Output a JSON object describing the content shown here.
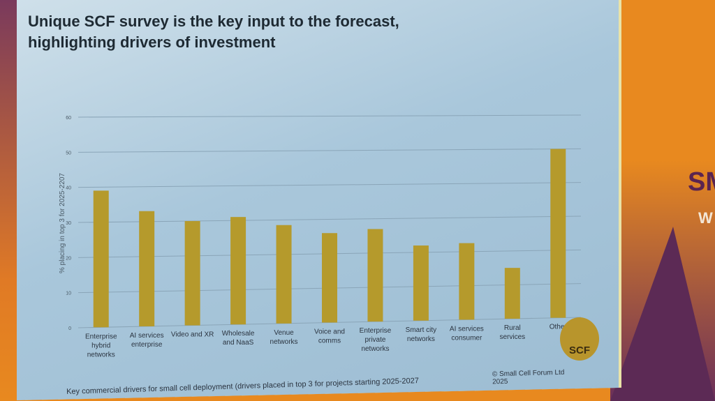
{
  "slide": {
    "title_line1": "Unique SCF survey is the key input to the forecast,",
    "title_line2": "highlighting drivers of investment",
    "footnote": "Key commercial drivers for small cell deployment (drivers placed in top 3 for projects starting 2025-2027",
    "copyright": "© Small Cell Forum Ltd 2025",
    "logo_text": "SCF"
  },
  "background": {
    "side_text": "SM",
    "side_sub": "W"
  },
  "chart_data": {
    "type": "bar",
    "title": "",
    "xlabel": "",
    "ylabel": "% placing in top 3 for 2025-2207",
    "ylim": [
      0,
      60
    ],
    "yticks": [
      0,
      10,
      20,
      30,
      40,
      50,
      60
    ],
    "grid": true,
    "bar_color": "#b59a2c",
    "categories": [
      "Enterprise hybrid networks",
      "AI services enterprise",
      "Video and XR",
      "Wholesale and NaaS",
      "Venue networks",
      "Voice and comms",
      "Enterprise private networks",
      "Smart city networks",
      "AI services consumer",
      "Rural services",
      "Other"
    ],
    "values": [
      39,
      33,
      30,
      31,
      28.5,
      26,
      27,
      22,
      22.5,
      15,
      50
    ]
  }
}
